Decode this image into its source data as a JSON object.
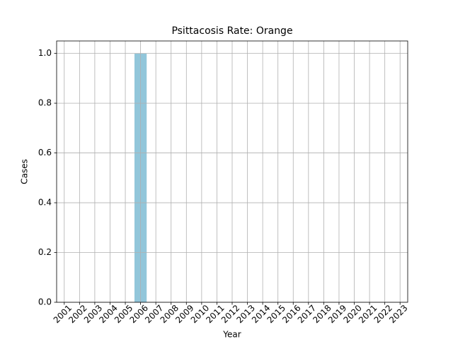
{
  "chart_data": {
    "type": "bar",
    "title": "Psittacosis Rate: Orange",
    "x_label": "Year",
    "y_label": "Cases",
    "categories": [
      "2001",
      "2002",
      "2003",
      "2004",
      "2005",
      "2006",
      "2007",
      "2008",
      "2009",
      "2010",
      "2011",
      "2012",
      "2013",
      "2014",
      "2015",
      "2016",
      "2017",
      "2018",
      "2019",
      "2020",
      "2021",
      "2022",
      "2023"
    ],
    "values": [
      0,
      0,
      0,
      0,
      0,
      1,
      0,
      0,
      0,
      0,
      0,
      0,
      0,
      0,
      0,
      0,
      0,
      0,
      0,
      0,
      0,
      0,
      0
    ],
    "color": "#92c6da",
    "ylim": [
      0,
      1.05
    ],
    "yticks": [
      {
        "value": 0,
        "label": "0.0"
      },
      0.2,
      0.4,
      0.6,
      0.8,
      {
        "value": 1,
        "label": "1.0"
      }
    ],
    "grid": true
  }
}
